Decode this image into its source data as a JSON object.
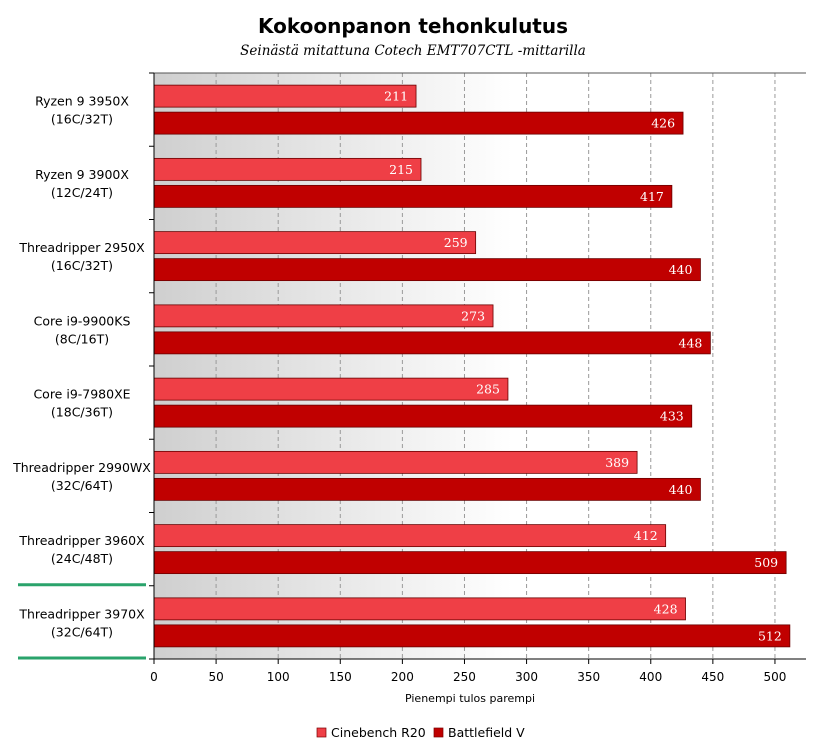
{
  "chart_data": {
    "type": "bar",
    "orientation": "horizontal",
    "title": "Kokoonpanon tehonkulutus",
    "subtitle": "Seinästä mitattuna Cotech EMT707CTL -mittarilla",
    "xlabel": "Pienempi tulos parempi",
    "xlim": [
      0,
      525
    ],
    "xticks": [
      0,
      50,
      100,
      150,
      200,
      250,
      300,
      350,
      400,
      450,
      500
    ],
    "grid": true,
    "legend_position": "bottom",
    "categories": [
      [
        "Ryzen 9 3950X",
        "(16C/32T)"
      ],
      [
        "Ryzen 9 3900X",
        "(12C/24T)"
      ],
      [
        "Threadripper 2950X",
        "(16C/32T)"
      ],
      [
        "Core i9-9900KS",
        "(8C/16T)"
      ],
      [
        "Core i9-7980XE",
        "(18C/36T)"
      ],
      [
        "Threadripper 2990WX",
        "(32C/64T)"
      ],
      [
        "Threadripper 3960X",
        "(24C/48T)"
      ],
      [
        "Threadripper 3970X",
        "(32C/64T)"
      ]
    ],
    "highlighted_categories": [
      6,
      7
    ],
    "series": [
      {
        "name": "Cinebench R20",
        "color": "#ef3f46",
        "values": [
          211,
          215,
          259,
          273,
          285,
          389,
          412,
          428
        ]
      },
      {
        "name": "Battlefield V",
        "color": "#c00000",
        "values": [
          426,
          417,
          440,
          448,
          433,
          440,
          509,
          512
        ]
      }
    ],
    "highlight_color": "#2aa36b"
  }
}
